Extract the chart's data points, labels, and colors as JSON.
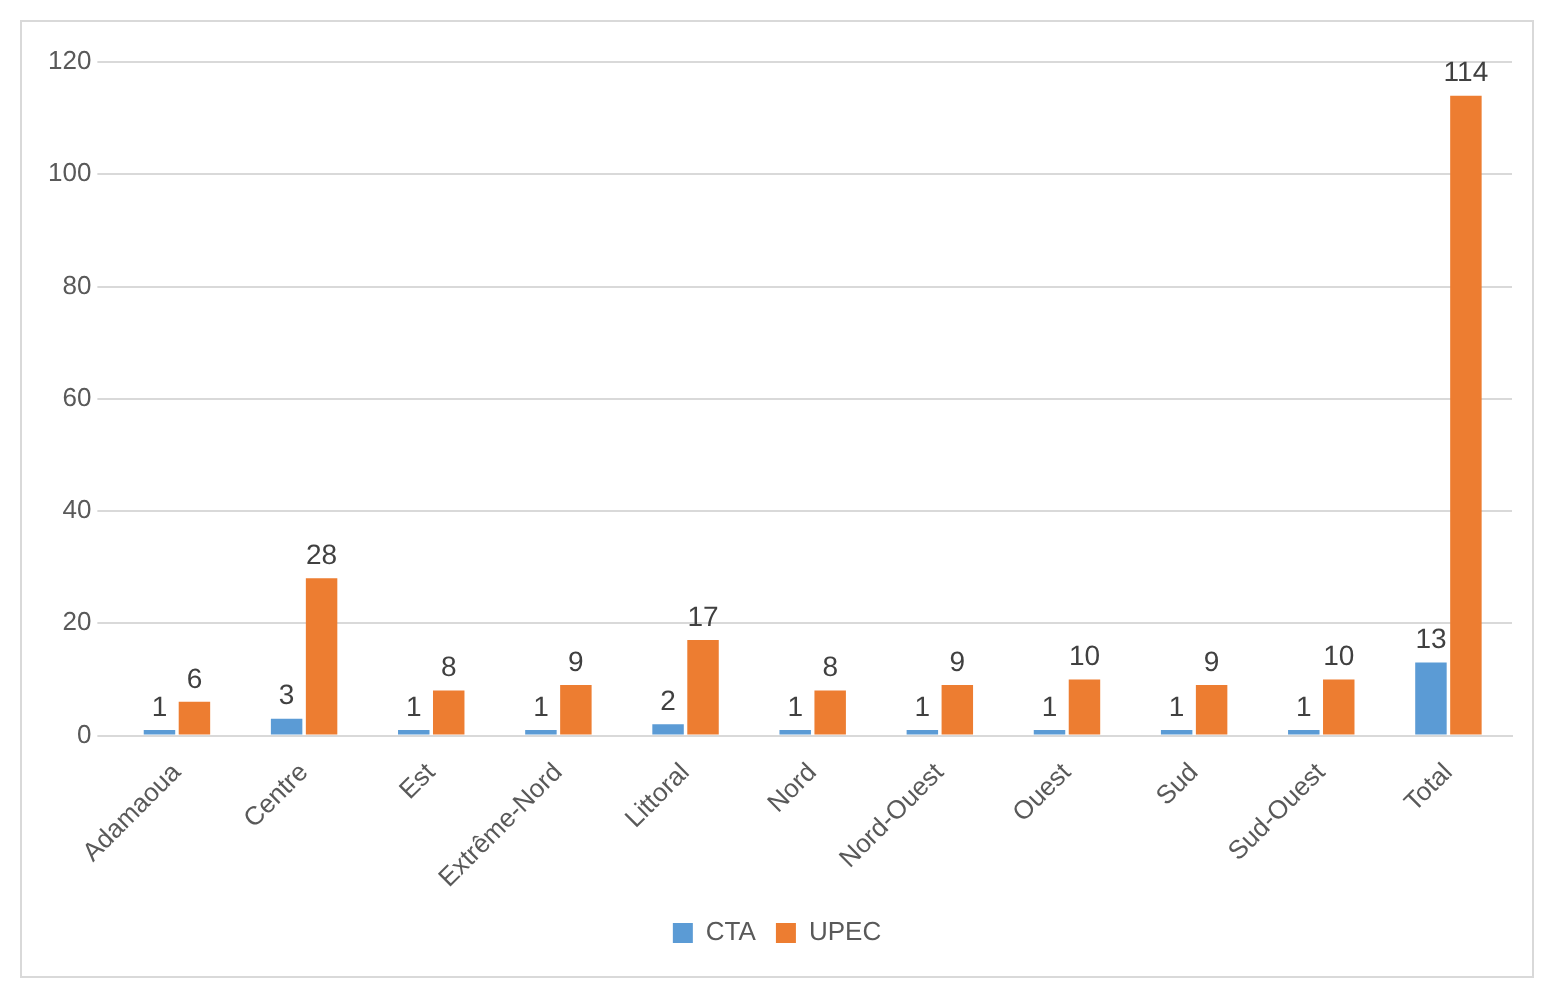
{
  "chart_data": {
    "type": "bar",
    "categories": [
      "Adamaoua",
      "Centre",
      "Est",
      "Extrême-Nord",
      "Littoral",
      "Nord",
      "Nord-Ouest",
      "Ouest",
      "Sud",
      "Sud-Ouest",
      "Total"
    ],
    "series": [
      {
        "name": "CTA",
        "color": "#5b9bd5",
        "values": [
          1,
          3,
          1,
          1,
          2,
          1,
          1,
          1,
          1,
          1,
          13
        ]
      },
      {
        "name": "UPEC",
        "color": "#ed7d31",
        "values": [
          6,
          28,
          8,
          9,
          17,
          8,
          9,
          10,
          9,
          10,
          114
        ]
      }
    ],
    "ylim": [
      0,
      120
    ],
    "yticks": [
      0,
      20,
      40,
      60,
      80,
      100,
      120
    ],
    "grid": "y",
    "legend": "bottom",
    "data_labels": true
  }
}
